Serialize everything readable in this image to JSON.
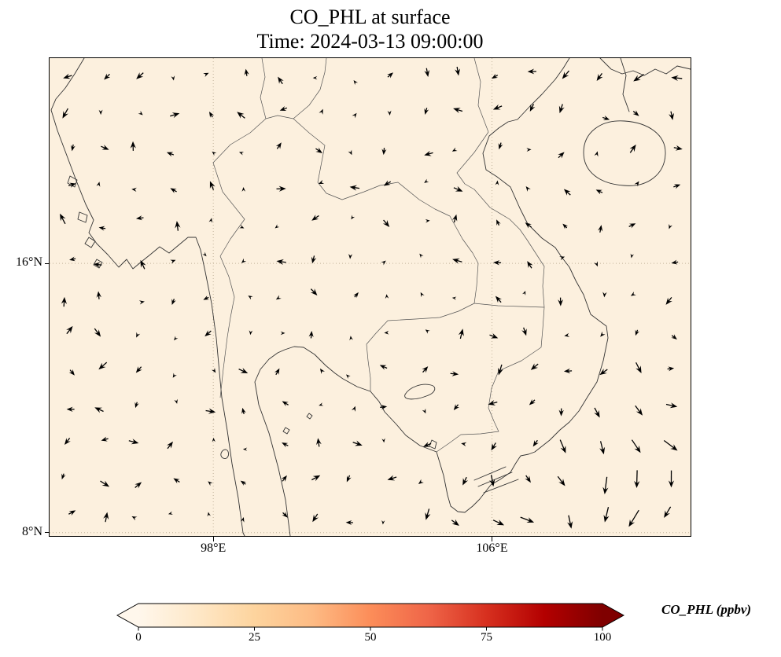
{
  "title": {
    "line1": "CO_PHL at surface",
    "line2": "Time: 2024-03-13 09:00:00"
  },
  "axes": {
    "y_ticks": [
      {
        "label": "16°N",
        "lat": 16
      },
      {
        "label": "8°N",
        "lat": 8
      }
    ],
    "x_ticks": [
      {
        "label": "98°E",
        "lon": 98
      },
      {
        "label": "106°E",
        "lon": 106
      }
    ]
  },
  "colorbar": {
    "label": "CO_PHL (ppbv)",
    "ticks": [
      "0",
      "25",
      "50",
      "75",
      "100"
    ],
    "vmin": 0,
    "vmax": 100,
    "colormap": "OrRd",
    "extend": "both",
    "colors": [
      "#fff7ec",
      "#fee8c8",
      "#fdd49e",
      "#fdbb84",
      "#fc8d59",
      "#ef6548",
      "#d7301f",
      "#b30000",
      "#7f0000"
    ]
  },
  "chart_data": {
    "type": "heatmap",
    "title": "CO_PHL at surface",
    "subtitle": "Time: 2024-03-13 09:00:00",
    "variable": "CO_PHL",
    "units": "ppbv",
    "colormap": "OrRd",
    "value_range": [
      0,
      100
    ],
    "colorbar_ticks": [
      0,
      25,
      50,
      75,
      100
    ],
    "field_color": "#fcf0de",
    "field_summary": "Near-uniform low CO_PHL (lowest color bin, roughly < 8 ppbv) across the whole Indochina / Bay of Bengal / South China Sea domain; no visible hotspots",
    "map_extent": {
      "lon": [
        93.3,
        111.7
      ],
      "lat": [
        7.9,
        22.1
      ]
    },
    "map_region": "Mainland Southeast Asia: Myanmar, Thailand, Laos, Cambodia, Vietnam, Gulf of Thailand, South China Sea, Hainan",
    "gridlines": {
      "lons": [
        98,
        106
      ],
      "lats": [
        8,
        16
      ],
      "style": "dotted"
    },
    "overlay": {
      "type": "quiver",
      "color": "#000000",
      "seed": 11,
      "grid": {
        "cols": 18,
        "rows": 13
      },
      "regions": [
        {
          "name": "south-china-sea-southeast",
          "flow": "strong northeasterly monsoon, arrows point southwest",
          "relative_speed": "high"
        },
        {
          "name": "gulf-of-tonkin-northeast",
          "flow": "easterly, arrows point west / up-left",
          "relative_speed": "moderate"
        },
        {
          "name": "inland-indochina",
          "flow": "weak and variable",
          "relative_speed": "low"
        },
        {
          "name": "bay-of-bengal-west",
          "flow": "weak to moderate, variable",
          "relative_speed": "low-moderate"
        }
      ]
    }
  }
}
